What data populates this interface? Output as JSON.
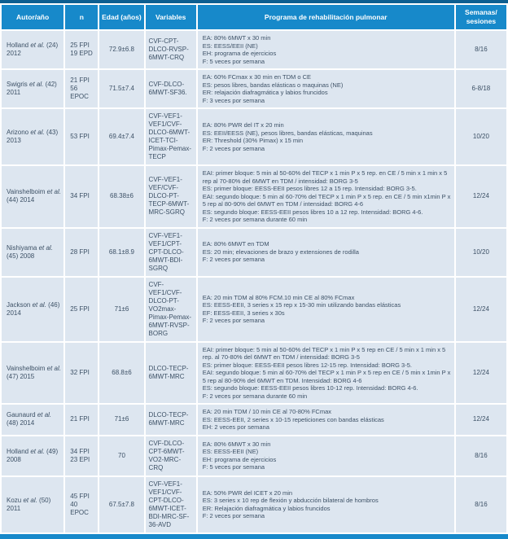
{
  "colors": {
    "header_bg": "#1789ca",
    "row_bg": "#dde6f0",
    "top_bar": "#0d5f91",
    "grid": "#ffffff",
    "text": "#3d5166"
  },
  "table": {
    "columns": [
      "Autor/año",
      "n",
      "Edad (años)",
      "Variables",
      "Programa de rehabilitación pulmonar",
      "Semanas/ sesiones"
    ],
    "rows": [
      {
        "author": {
          "name": "Holland",
          "etal": "et al.",
          "ref": "(24)",
          "year": "2012"
        },
        "n": [
          "25 FPI",
          "19 EPD"
        ],
        "edad": "72.9±6.8",
        "variables": "CVF-CPT-DLCO-RVSP-6MWT-CRQ",
        "programa": [
          "EA: 80% 6MWT x 30 min",
          "ES: EESS/EEII (NE)",
          "EH: programa de ejercicios",
          "F: 5 veces por semana"
        ],
        "semanas": "8/16"
      },
      {
        "author": {
          "name": "Swigris",
          "etal": "et al.",
          "ref": "(42)",
          "year": "2011"
        },
        "n": [
          "21 FPI",
          "56 EPOC"
        ],
        "edad": "71.5±7.4",
        "variables": "CVF-DLCO-6MWT-SF36.",
        "programa": [
          "EA: 60% FCmax x 30 min en TDM o CE",
          "ES: pesos libres, bandas elásticas o maquinas (NE)",
          "ER: relajación diafragmática y labios fruncidos",
          "F: 3 veces por semana"
        ],
        "semanas": "6-8/18"
      },
      {
        "author": {
          "name": "Arizono",
          "etal": "et al.",
          "ref": "(43)",
          "year": "2013"
        },
        "n": [
          "53 FPI"
        ],
        "edad": "69.4±7.4",
        "variables": "CVF-VEF1-VEF1/CVF-DLCO-6MWT-ICET-TCI-Pimax-Pemax-TECP",
        "programa": [
          "EA: 80% PWR del IT x 20 min",
          "ES: EEII/EESS (NE), pesos libres, bandas elásticas, maquinas",
          "ER: Threshold (30% Pimax) x 15 min",
          "F: 2 veces por semana"
        ],
        "semanas": "10/20"
      },
      {
        "author": {
          "name": "Vainshelboim",
          "etal": "et al.",
          "ref": "(44)",
          "year": "2014"
        },
        "n": [
          "34 FPI"
        ],
        "edad": "68.38±6",
        "variables": "CVF-VEF1-VEF/CVF-DLCO-PT-TECP-6MWT-MRC-SGRQ",
        "programa": [
          "EAI: primer bloque: 5 min al 50-60% del TECP x 1 min P x 5 rep. en CE / 5 min x 1 min x 5 rep al 70-80% del 6MWT en TDM / intensidad: BORG 3-5",
          "ES: primer bloque: EESS-EEII pesos libres 12 a 15 rep. Intensidad: BORG 3-5.",
          "EAI: segundo bloque: 5 min al 60-70% del TECP x 1 min P x 5 rep. en CE / 5 min x1min P x 5 rep al 80-90% del 6MWT en TDM / intensidad: BORG 4-6",
          "ES: segundo bloque: EESS-EEII pesos libres 10 a 12 rep. Intensidad: BORG 4-6.",
          "F: 2 veces por semana durante 60 min"
        ],
        "semanas": "12/24"
      },
      {
        "author": {
          "name": "Nishiyama",
          "etal": "et al.",
          "ref": "(45)",
          "year": "2008"
        },
        "n": [
          "28 FPI"
        ],
        "edad": "68.1±8.9",
        "variables": "CVF-VEF1-VEF1/CPT-CPT-DLCO-6MWT-BDI-SGRQ",
        "programa": [
          "EA: 80% 6MWT en TDM",
          "ES: 20 min; elevaciones de brazo y extensiones de rodilla",
          "F: 2 veces por semana"
        ],
        "semanas": "10/20"
      },
      {
        "author": {
          "name": "Jackson",
          "etal": "et al.",
          "ref": "(46)",
          "year": "2014"
        },
        "n": [
          "25 FPI"
        ],
        "edad": "71±6",
        "variables": "CVF-VEF1/CVF-DLCO-PT-VO2max-Pimax-Pemax-6MWT-RVSP-BORG",
        "programa": [
          "EA: 20 min TDM al 80% FCM.10 min CE al 80% FCmax",
          "ES: EESS-EEII, 3 series x 15 rep x 15-30 min utilizando bandas elásticas",
          "EF: EESS-EEII, 3 series x 30s",
          "F: 2 veces por semana"
        ],
        "semanas": "12/24"
      },
      {
        "author": {
          "name": "Vainshelboim",
          "etal": "et al.",
          "ref": "(47)",
          "year": "2015"
        },
        "n": [
          "32 FPI"
        ],
        "edad": "68.8±6",
        "variables": "DLCO-TECP-6MWT-MRC",
        "programa": [
          "EAI: primer bloque: 5 min al 50-60% del TECP x 1 min P x 5 rep en CE / 5 min x 1 min x 5 rep. al 70-80% del 6MWT en TDM / intensidad: BORG 3-5",
          "ES: primer bloque: EESS-EEII pesos libres 12-15 rep. Intensidad: BORG 3-5.",
          "EAI: segundo bloque: 5 min al 60-70% del TECP x 1 min P x 5 rep en CE / 5 min x 1min P x 5 rep al 80-90% del 6MWT en TDM. Intensidad: BORG 4-6",
          "ES: segundo bloque: EESS-EEII pesos libres 10-12 rep. Intensidad: BORG 4-6.",
          "F: 2 veces por semana durante 60 min"
        ],
        "semanas": "12/24"
      },
      {
        "author": {
          "name": "Gaunaurd",
          "etal": "et al.",
          "ref": "(48)",
          "year": "2014"
        },
        "n": [
          "21 FPI"
        ],
        "edad": "71±6",
        "variables": "DLCO-TECP-6MWT-MRC",
        "programa": [
          "EA: 20 min TDM / 10 min CE al 70-80% FCmax",
          "ES: EESS-EEII, 2 series x 10-15 repeticiones con bandas elásticas",
          "EH: 2 veces por semana"
        ],
        "semanas": "12/24"
      },
      {
        "author": {
          "name": "Holland",
          "etal": "et al.",
          "ref": "(49)",
          "year": "2008"
        },
        "n": [
          "34 FPI",
          "23 EPI"
        ],
        "edad": "70",
        "variables": "CVF-DLCO-CPT-6MWT-VO2-MRC-CRQ",
        "programa": [
          "EA: 80% 6MWT x 30 min",
          "ES: EESS-EEII (NE)",
          "EH: programa de ejercicios",
          "F: 5 veces por semana"
        ],
        "semanas": "8/16"
      },
      {
        "author": {
          "name": "Kozu",
          "etal": "et al.",
          "ref": "(50)",
          "year": "2011"
        },
        "n": [
          "45 FPI",
          "40 EPOC"
        ],
        "edad": "67.5±7.8",
        "variables": "CVF-VEF1-VEF1/CVF-CPT-DLCO-6MWT-ICET-BDI-MRC-SF-36-AVD",
        "programa": [
          "EA: 50% PWR del ICET x 20 min",
          "ES: 3 series x 10 rep de flexión y abducción bilateral de hombros",
          "ER: Relajación diafragmática y labios fruncidos",
          "F: 2 veces por semana"
        ],
        "semanas": "8/16"
      }
    ]
  }
}
